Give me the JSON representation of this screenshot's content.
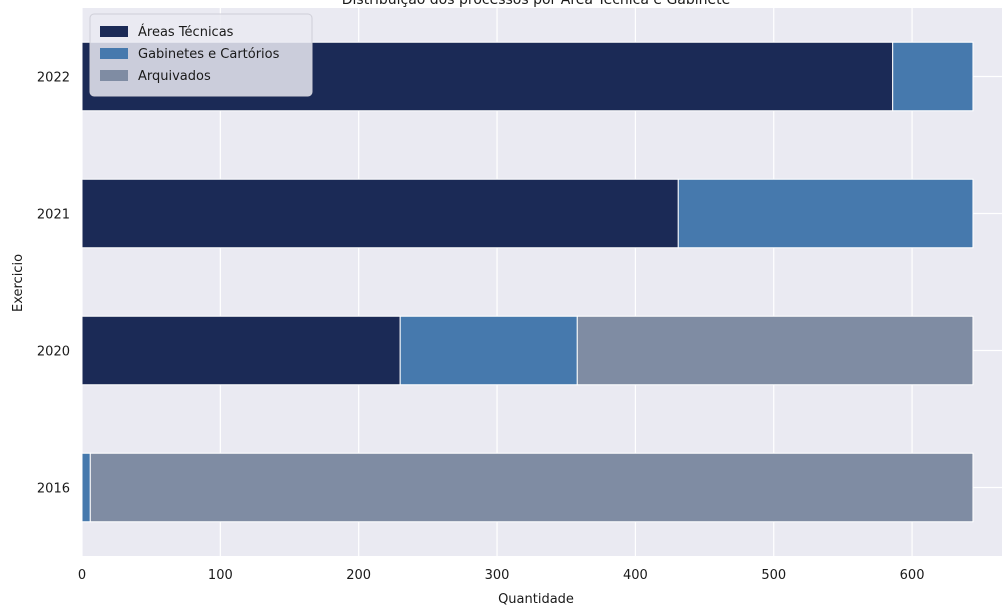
{
  "chart_data": {
    "type": "bar",
    "orientation": "horizontal",
    "stacked": true,
    "title": "Distribuição dos processos por Área Técnica e Gabinete",
    "xlabel": "Quantidade",
    "ylabel": "Exercicio",
    "categories": [
      "2022",
      "2021",
      "2020",
      "2016"
    ],
    "series": [
      {
        "name": "Áreas Técnicas",
        "color": "#1b2a56",
        "values": [
          586,
          431,
          230,
          0
        ]
      },
      {
        "name": "Gabinetes e Cartórios",
        "color": "#4679ad",
        "values": [
          58,
          213,
          128,
          6
        ]
      },
      {
        "name": "Arquivados",
        "color": "#7f8ca3",
        "values": [
          0,
          0,
          286,
          638
        ]
      }
    ],
    "xlim": [
      0,
      665
    ],
    "xticks": [
      0,
      100,
      200,
      300,
      400,
      500,
      600
    ],
    "grid": true,
    "legend_position": "top-left",
    "background_color": "#eaeaf2",
    "grid_color": "#ffffff"
  }
}
